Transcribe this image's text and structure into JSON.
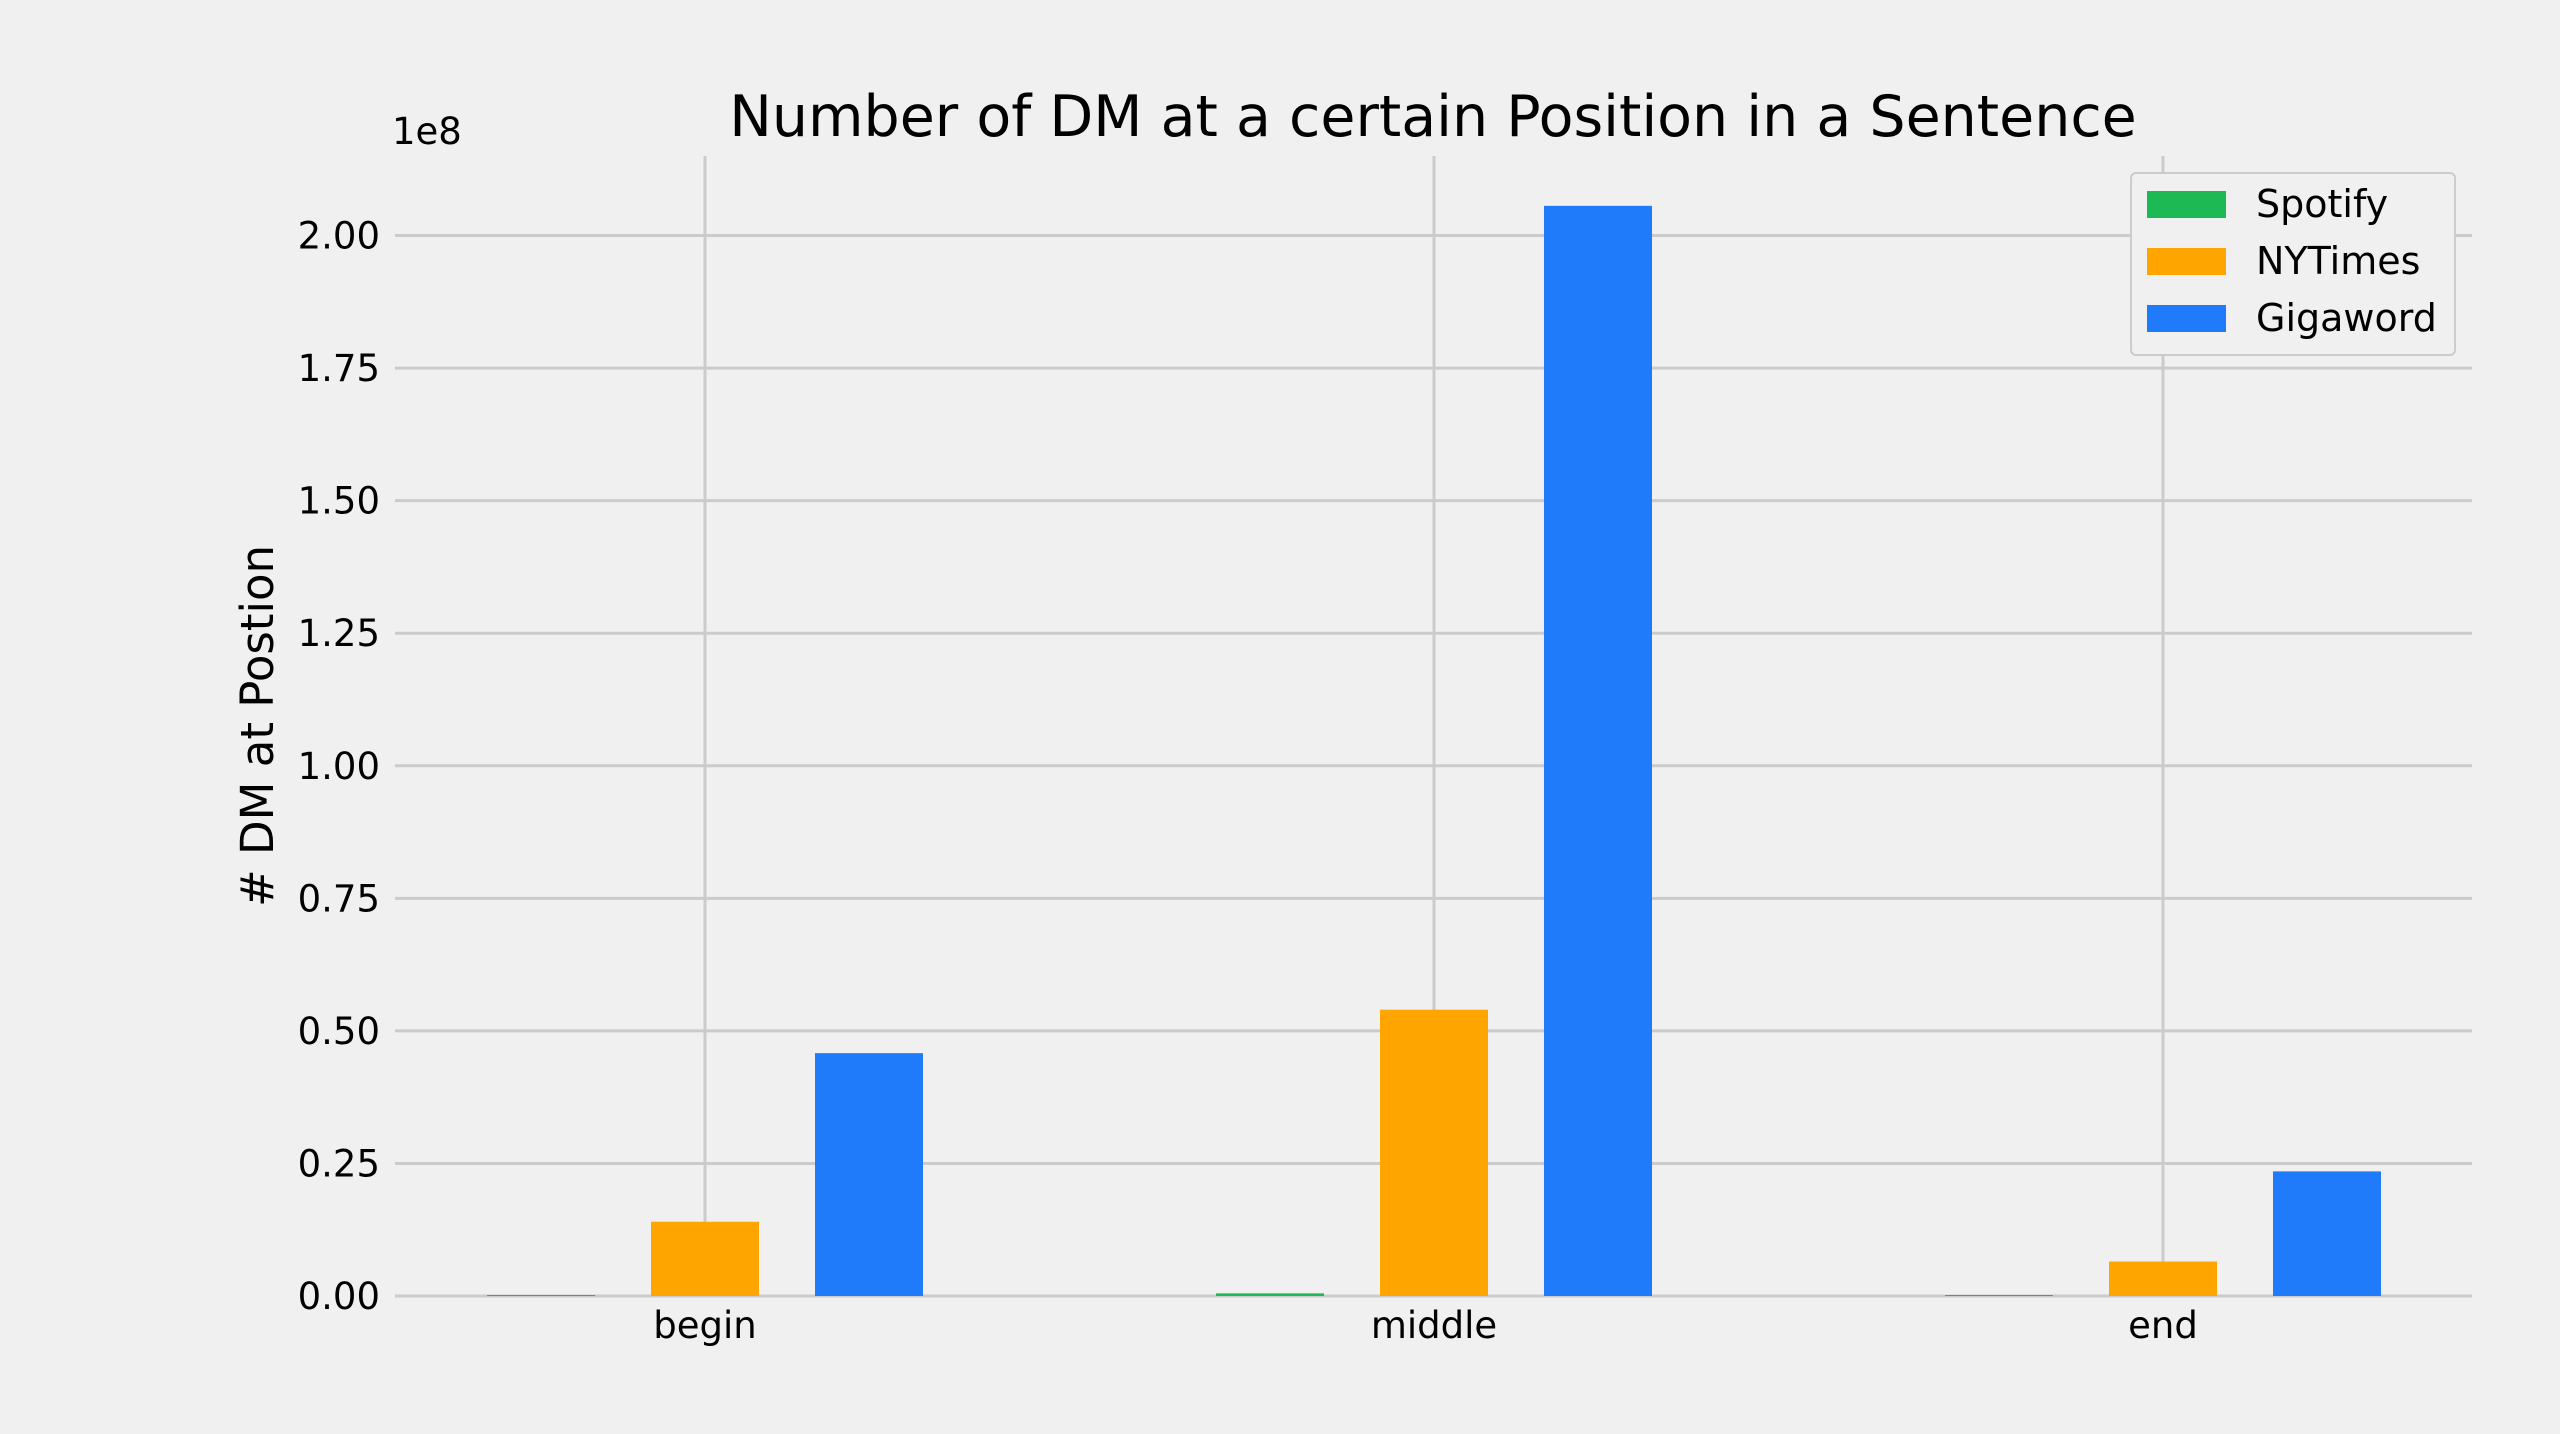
{
  "chart_data": {
    "type": "bar",
    "title": "Number of DM at a certain Position in a Sentence",
    "xlabel": "",
    "ylabel": "# DM at Postion",
    "y_offset_label": "1e8",
    "categories": [
      "begin",
      "middle",
      "end"
    ],
    "series": [
      {
        "name": "Spotify",
        "color": "#1db954",
        "values": [
          30000,
          500000,
          30000
        ]
      },
      {
        "name": "NYTimes",
        "color": "#ffa500",
        "values": [
          14000000,
          54000000,
          6500000
        ]
      },
      {
        "name": "Gigaword",
        "color": "#207bfa",
        "values": [
          45800000,
          205600000,
          23500000
        ]
      }
    ],
    "ylim": [
      0,
      215000000
    ],
    "yticks": [
      0,
      25000000,
      50000000,
      75000000,
      100000000,
      125000000,
      150000000,
      175000000,
      200000000
    ],
    "ytick_labels": [
      "0.00",
      "0.25",
      "0.50",
      "0.75",
      "1.00",
      "1.25",
      "1.50",
      "1.75",
      "2.00"
    ],
    "grid": true,
    "legend_position": "top-right"
  }
}
